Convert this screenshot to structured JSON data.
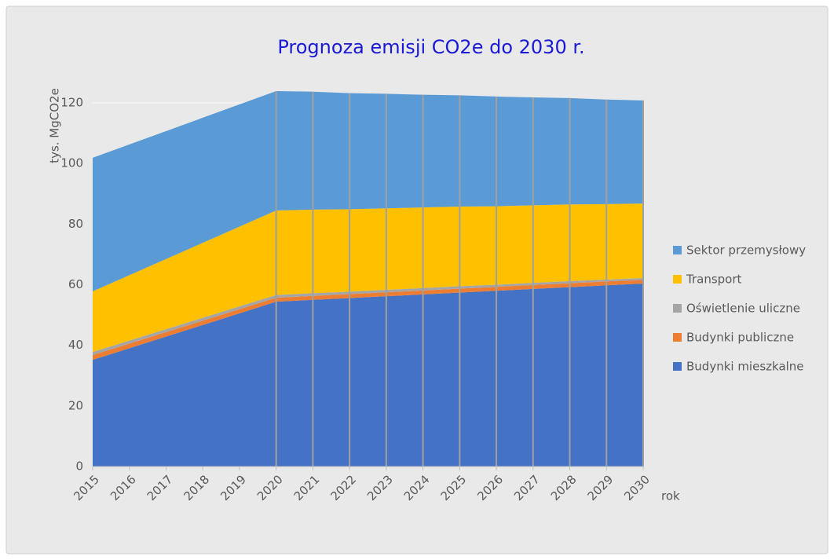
{
  "chart_data": {
    "type": "stacked_area",
    "title": "Prognoza emisji CO2e do 2030 r.",
    "ylabel": "tys. MgCO2e",
    "xlabel": "rok",
    "x": [
      2015,
      2020,
      2021,
      2022,
      2023,
      2024,
      2025,
      2026,
      2027,
      2028,
      2029,
      2030
    ],
    "xlim": [
      2015,
      2030
    ],
    "xticks": [
      2015,
      2016,
      2017,
      2018,
      2019,
      2020,
      2021,
      2022,
      2023,
      2024,
      2025,
      2026,
      2027,
      2028,
      2029,
      2030
    ],
    "ylim": [
      0,
      120
    ],
    "yticks": [
      0,
      20,
      40,
      60,
      80,
      100,
      120
    ],
    "grid": true,
    "legend": "right",
    "series": [
      {
        "name": "Budynki mieszkalne",
        "color": "#4472c4",
        "values": [
          35.2,
          54.4,
          55.0,
          55.6,
          56.2,
          56.8,
          57.4,
          58.0,
          58.6,
          59.2,
          59.8,
          60.4
        ]
      },
      {
        "name": "Budynki publiczne",
        "color": "#ed7d31",
        "values": [
          1.6,
          1.3,
          1.3,
          1.3,
          1.3,
          1.3,
          1.3,
          1.3,
          1.3,
          1.3,
          1.3,
          1.2
        ]
      },
      {
        "name": "Oświetlenie uliczne",
        "color": "#a5a5a5",
        "values": [
          1.0,
          0.9,
          0.9,
          0.8,
          0.8,
          0.8,
          0.8,
          0.7,
          0.7,
          0.7,
          0.6,
          0.6
        ]
      },
      {
        "name": "Transport",
        "color": "#ffc000",
        "values": [
          20.0,
          27.9,
          27.6,
          27.2,
          26.9,
          26.6,
          26.3,
          25.9,
          25.6,
          25.3,
          24.9,
          24.6
        ]
      },
      {
        "name": "Sektor przemysłowy",
        "color": "#5b9bd5",
        "values": [
          44.1,
          39.4,
          38.9,
          38.3,
          37.8,
          37.2,
          36.7,
          36.2,
          35.6,
          35.1,
          34.5,
          34.0
        ]
      }
    ]
  }
}
